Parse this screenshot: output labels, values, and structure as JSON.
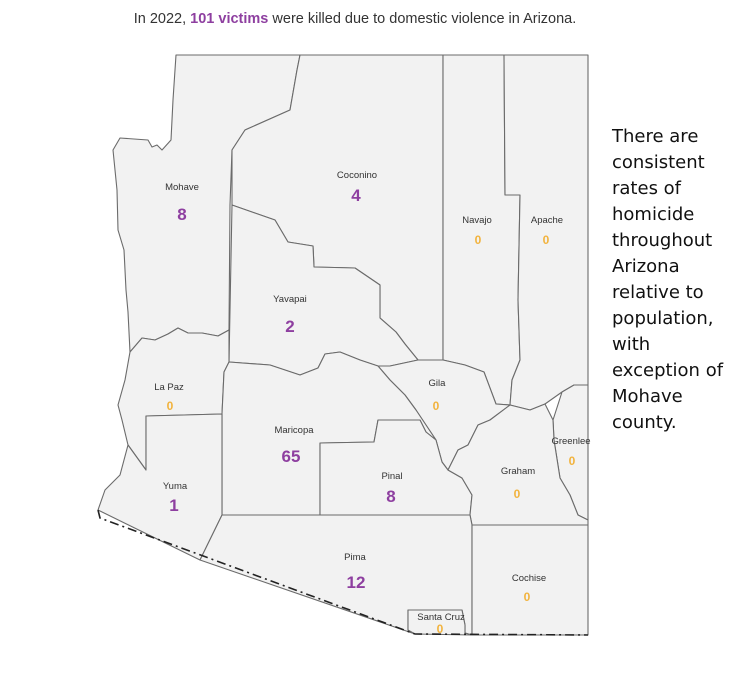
{
  "headline": {
    "prefix": "In 2022, ",
    "highlight": "101 victims",
    "suffix": " were killed due to domestic violence in Arizona."
  },
  "side_note": "There are consistent rates of homicide throughout Arizona relative to population, with exception of Mohave county.",
  "colors": {
    "value_purple": "#8e3fa0",
    "value_orange": "#f2b33d",
    "county_fill": "#f2f2f2",
    "county_stroke": "#6b6b6b"
  },
  "counties": [
    {
      "id": "mohave",
      "name": "Mohave",
      "value": "8"
    },
    {
      "id": "coconino",
      "name": "Coconino",
      "value": "4"
    },
    {
      "id": "navajo",
      "name": "Navajo",
      "value": "0"
    },
    {
      "id": "apache",
      "name": "Apache",
      "value": "0"
    },
    {
      "id": "yavapai",
      "name": "Yavapai",
      "value": "2"
    },
    {
      "id": "la-paz",
      "name": "La Paz",
      "value": "0"
    },
    {
      "id": "gila",
      "name": "Gila",
      "value": "0"
    },
    {
      "id": "maricopa",
      "name": "Maricopa",
      "value": "65"
    },
    {
      "id": "greenlee",
      "name": "Greenlee",
      "value": "0"
    },
    {
      "id": "yuma",
      "name": "Yuma",
      "value": "1"
    },
    {
      "id": "pinal",
      "name": "Pinal",
      "value": "8"
    },
    {
      "id": "graham",
      "name": "Graham",
      "value": "0"
    },
    {
      "id": "pima",
      "name": "Pima",
      "value": "12"
    },
    {
      "id": "cochise",
      "name": "Cochise",
      "value": "0"
    },
    {
      "id": "santa-cruz",
      "name": "Santa Cruz",
      "value": "0"
    }
  ]
}
